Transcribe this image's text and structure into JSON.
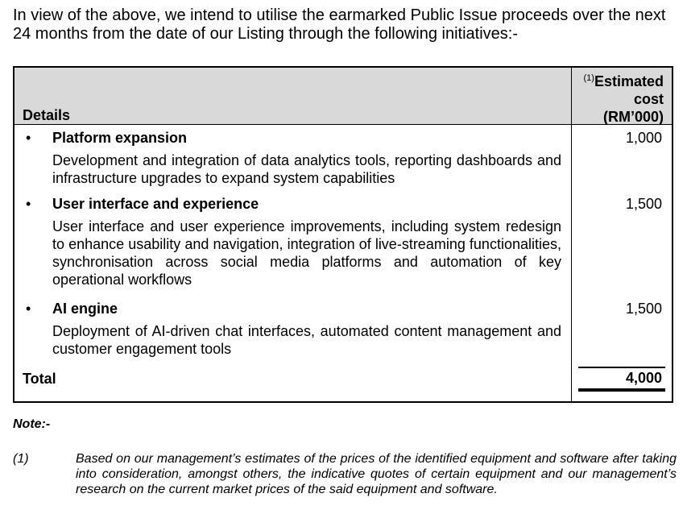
{
  "intro": "In view of the above, we intend to utilise the earmarked Public Issue proceeds over the next 24 months from the date of our Listing through the following initiatives:-",
  "table": {
    "header": {
      "details": "Details",
      "cost_sup": "(1)",
      "cost_line1": "Estimated",
      "cost_line2": "cost",
      "cost_line3": "(RM’000)"
    },
    "rows": [
      {
        "title": "Platform expansion",
        "desc": "Development and integration of data analytics tools, reporting dashboards and infrastructure upgrades to expand system capabilities",
        "cost": "1,000"
      },
      {
        "title": "User interface and experience",
        "desc": "User interface and user experience improvements, including system redesign to enhance usability and navigation, integration of live-streaming functionalities, synchronisation across social media platforms and automation of key operational workflows",
        "cost": "1,500"
      },
      {
        "title": "AI engine",
        "desc": "Deployment of AI-driven chat interfaces, automated content management and customer engagement tools",
        "cost": "1,500"
      }
    ],
    "total_label": "Total",
    "total_value": "4,000",
    "bullet": "•"
  },
  "note": {
    "heading": "Note:-",
    "items": [
      {
        "num": "(1)",
        "text": "Based on our management’s estimates of the prices of the identified equipment and software after taking into consideration, amongst others, the indicative quotes of certain equipment and our management’s research on the current market prices of the said equipment and software."
      }
    ]
  }
}
